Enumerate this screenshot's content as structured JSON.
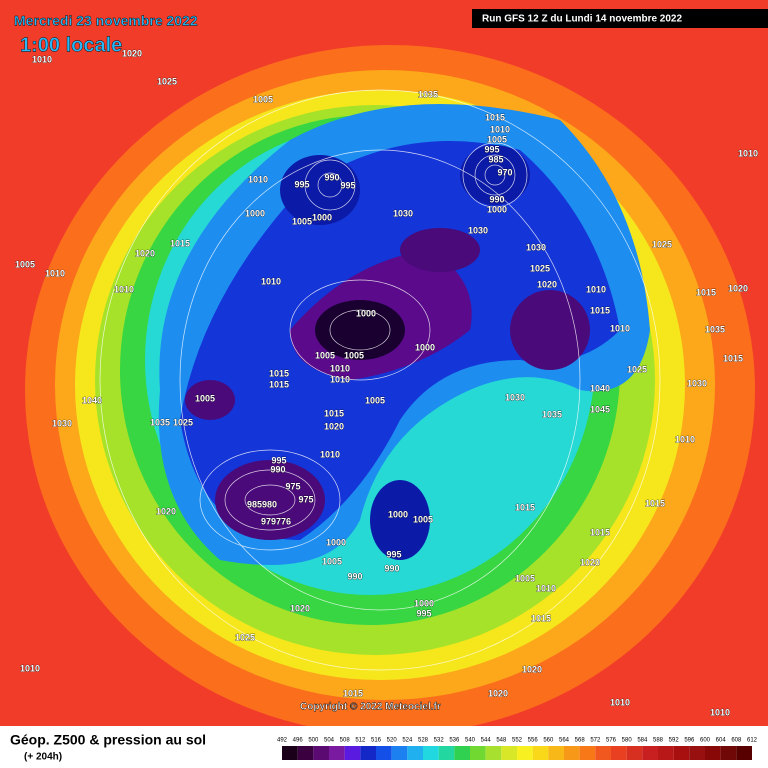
{
  "header": {
    "date": "Mercredi 23 novembre 2022",
    "local_time": "1:00 locale",
    "run": "Run GFS 12 Z du Lundi 14 novembre 2022"
  },
  "copyright": "Copyright © 2022 Meteociel.fr",
  "legend": {
    "title": "Géop. Z500 & pression au sol",
    "lead_time": "(+ 204h)",
    "values": [
      492,
      496,
      500,
      504,
      508,
      512,
      516,
      520,
      524,
      528,
      532,
      536,
      540,
      544,
      548,
      552,
      556,
      560,
      564,
      568,
      572,
      576,
      580,
      584,
      588,
      592,
      596,
      600,
      604,
      608,
      612
    ]
  },
  "isobar_labels": [
    1010,
    1020,
    1025,
    1005,
    1035,
    1015,
    1010,
    1005,
    995,
    985,
    970,
    990,
    1000,
    1030,
    1030,
    1010,
    995,
    990,
    995,
    1005,
    1000,
    1000,
    1015,
    1020,
    1005,
    1010,
    1010,
    1010,
    1030,
    1025,
    1020,
    1010,
    1015,
    1010,
    1025,
    1015,
    1020,
    1035,
    1015,
    1030,
    1025,
    1040,
    1045,
    1035,
    1030,
    1000,
    1000,
    1005,
    1005,
    1010,
    1010,
    1015,
    1015,
    1005,
    1040,
    1030,
    1035,
    1025,
    1005,
    1015,
    1020,
    1010,
    995,
    990,
    975,
    975,
    985980,
    979776,
    1020,
    1000,
    1005,
    990,
    995,
    990,
    1000,
    1005,
    1015,
    1015,
    1015,
    1020,
    1005,
    1010,
    1015,
    1000,
    995,
    1020,
    1025,
    1010,
    1020,
    1020,
    1015,
    1010,
    1010,
    1010,
    1010
  ]
}
